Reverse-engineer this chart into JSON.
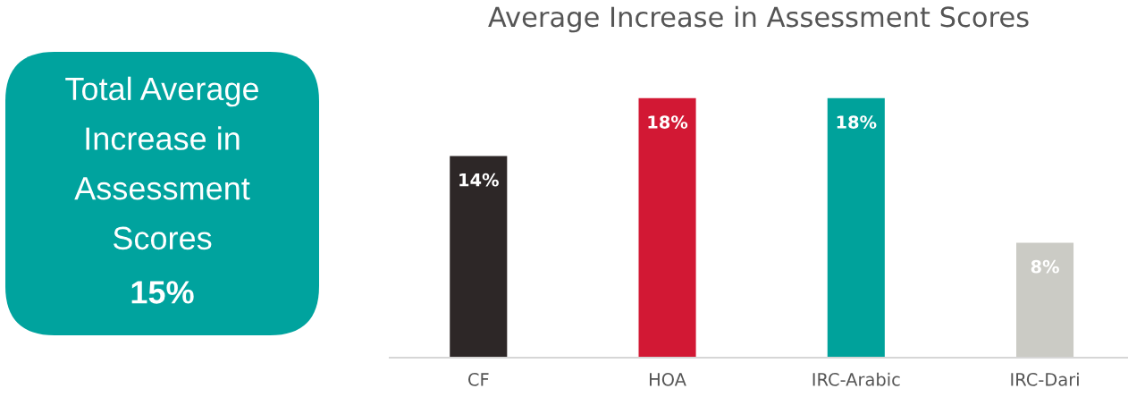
{
  "chart_data": [
    {
      "type": "other",
      "title": "Total Average Increase in Assessment Scores",
      "annotations": [
        "15%"
      ],
      "color": "#00a39e"
    },
    {
      "type": "bar",
      "title": "Average Increase in Assessment Scores",
      "categories": [
        "CF",
        "HOA",
        "IRC-Arabic",
        "IRC-Dari"
      ],
      "values": [
        14,
        18,
        18,
        8
      ],
      "colors": [
        "#2d2727",
        "#d21834",
        "#00a29b",
        "#cbcbc5"
      ],
      "value_labels": [
        "14%",
        "18%",
        "18%",
        "8%"
      ],
      "tick_labels": "x"
    }
  ]
}
